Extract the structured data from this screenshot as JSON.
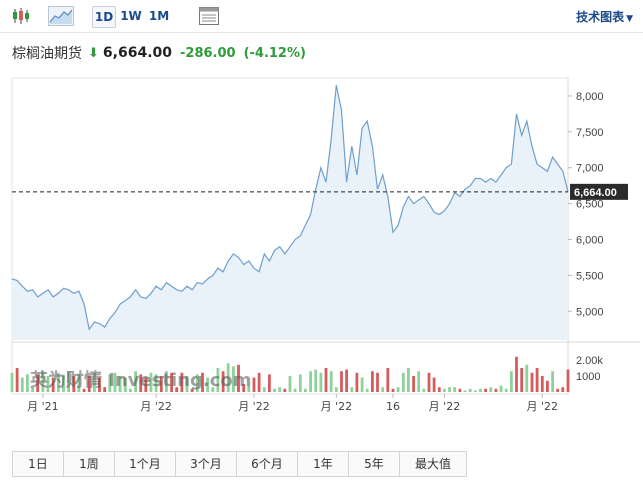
{
  "toolbar": {
    "icons": [
      "candlestick-icon",
      "area-chart-icon",
      "table-view-icon"
    ],
    "periods": [
      "1D",
      "1W",
      "1M"
    ],
    "active_period": "1D",
    "tech_chart_label": "技术图表"
  },
  "header": {
    "name": "棕榈油期货",
    "price": "6,664.00",
    "change": "-286.00",
    "change_pct": "(-4.12%)",
    "direction": "down"
  },
  "colors": {
    "line": "#6f9fcc",
    "area": "#e9f1f9",
    "up_volume": "#8fd19a",
    "down_volume": "#d45c5c",
    "negative": "#2e9b3a",
    "link": "#1a4a8a"
  },
  "watermark": "英为财情 Investing.com",
  "chart_data": {
    "type": "area",
    "y_ticks": [
      "8,000",
      "7,500",
      "7,000",
      "6,500",
      "6,000",
      "5,500",
      "5,000"
    ],
    "y_tick_values": [
      8000,
      7500,
      7000,
      6500,
      6000,
      5500,
      5000
    ],
    "ylim": [
      4600,
      8250
    ],
    "current_value": 6664,
    "current_label": "6,664.00",
    "volume_ticks": [
      "2.00k",
      "1000"
    ],
    "volume_tick_values": [
      2000,
      1000
    ],
    "volume_max": 3000,
    "x_labels": [
      "月 '21",
      "月 '22",
      "月 '22",
      "月 '22",
      "16",
      "月 '22",
      "月 '22"
    ],
    "x_label_index": [
      6,
      28,
      47,
      63,
      74,
      84,
      103
    ],
    "values": [
      5450,
      5430,
      5350,
      5280,
      5300,
      5200,
      5250,
      5300,
      5200,
      5250,
      5320,
      5300,
      5250,
      5280,
      5100,
      4750,
      4850,
      4830,
      4780,
      4900,
      4980,
      5100,
      5150,
      5200,
      5300,
      5200,
      5180,
      5250,
      5350,
      5300,
      5400,
      5350,
      5300,
      5280,
      5350,
      5300,
      5400,
      5380,
      5450,
      5500,
      5600,
      5550,
      5700,
      5800,
      5750,
      5650,
      5700,
      5600,
      5550,
      5800,
      5700,
      5850,
      5900,
      5800,
      5900,
      6000,
      6050,
      6200,
      6350,
      6700,
      7000,
      6800,
      7400,
      8150,
      7800,
      6800,
      7300,
      6900,
      7550,
      7650,
      7300,
      6700,
      6900,
      6600,
      6100,
      6200,
      6450,
      6600,
      6500,
      6550,
      6600,
      6500,
      6380,
      6350,
      6400,
      6500,
      6650,
      6600,
      6700,
      6750,
      6850,
      6850,
      6800,
      6850,
      6800,
      6900,
      7000,
      7050,
      7750,
      7450,
      7650,
      7300,
      7050,
      7000,
      6950,
      7150,
      7050,
      6950,
      6664
    ],
    "volumes": [
      1200,
      1500,
      900,
      1100,
      300,
      1100,
      1300,
      1000,
      900,
      1200,
      1000,
      1300,
      1000,
      1100,
      200,
      1000,
      1200,
      900,
      300,
      1100,
      1200,
      1000,
      900,
      200,
      1300,
      1100,
      900,
      1200,
      1100,
      1000,
      1300,
      1200,
      300,
      1200,
      1000,
      200,
      1100,
      1200,
      900,
      300,
      1500,
      1300,
      1800,
      1600,
      1700,
      500,
      400,
      900,
      1200,
      300,
      1100,
      200,
      300,
      200,
      1000,
      200,
      1100,
      200,
      1300,
      1400,
      1200,
      1500,
      1300,
      300,
      1300,
      1400,
      300,
      1200,
      900,
      200,
      1300,
      1200,
      300,
      1500,
      200,
      300,
      1200,
      1500,
      1000,
      1300,
      200,
      1200,
      900,
      300,
      200,
      300,
      300,
      200,
      100,
      200,
      100,
      200,
      200,
      300,
      200,
      400,
      200,
      1300,
      2200,
      1500,
      1700,
      1200,
      1500,
      1000,
      700,
      1300,
      200,
      300,
      1400
    ],
    "volume_up": [
      1,
      0,
      1,
      1,
      1,
      0,
      1,
      1,
      0,
      1,
      1,
      1,
      0,
      1,
      0,
      0,
      1,
      0,
      0,
      1,
      1,
      1,
      1,
      1,
      1,
      0,
      0,
      1,
      1,
      0,
      1,
      0,
      0,
      0,
      1,
      0,
      1,
      0,
      1,
      1,
      1,
      0,
      1,
      1,
      0,
      0,
      1,
      0,
      0,
      1,
      0,
      1,
      1,
      0,
      1,
      1,
      1,
      1,
      1,
      1,
      1,
      0,
      1,
      1,
      0,
      0,
      1,
      0,
      1,
      1,
      0,
      0,
      1,
      0,
      0,
      1,
      1,
      1,
      0,
      1,
      1,
      0,
      0,
      0,
      1,
      1,
      1,
      0,
      1,
      1,
      1,
      1,
      0,
      1,
      0,
      1,
      1,
      1,
      0,
      0,
      1,
      0,
      0,
      0,
      0,
      1,
      0,
      0,
      0
    ]
  },
  "range_buttons": [
    "1日",
    "1周",
    "1个月",
    "3个月",
    "6个月",
    "1年",
    "5年",
    "最大值"
  ]
}
